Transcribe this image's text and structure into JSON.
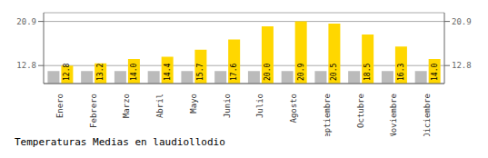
{
  "chart_data": {
    "type": "bar",
    "title": "Temperaturas Medias en laudiollodio",
    "categories": [
      "Enero",
      "Febrero",
      "Marzo",
      "Abril",
      "Mayo",
      "Junio",
      "Julio",
      "Agosto",
      "Septiembre",
      "Octubre",
      "Noviembre",
      "Diciembre"
    ],
    "series": [
      {
        "color": "#BBBBBB",
        "values": [
          11.8,
          11.8,
          11.8,
          11.8,
          11.8,
          11.8,
          11.8,
          11.8,
          11.8,
          11.8,
          11.8,
          11.8
        ]
      },
      {
        "color": "#FFD700",
        "values": [
          12.8,
          13.2,
          14.0,
          14.4,
          15.7,
          17.6,
          20.0,
          20.9,
          20.5,
          18.5,
          16.3,
          14.0
        ],
        "value_labels": [
          "12.8",
          "13.2",
          "14.0",
          "14.4",
          "15.7",
          "17.6",
          "20.0",
          "20.9",
          "20.5",
          "18.5",
          "16.3",
          "14.0"
        ],
        "data_labels": true
      }
    ],
    "ylim": [
      9.5,
      22.5
    ],
    "yticks": [
      12.8,
      20.9
    ],
    "grid": true
  }
}
